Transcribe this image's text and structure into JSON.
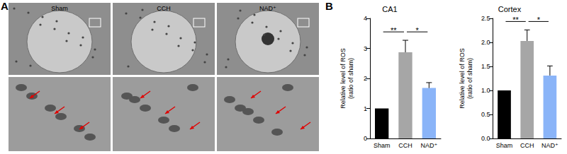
{
  "panel_labels": [
    "A",
    "B"
  ],
  "micrographs": {
    "columns": [
      "Sham",
      "CCH",
      "NAD⁺"
    ]
  },
  "chart_data": [
    {
      "type": "bar",
      "title": "CA1",
      "y_label": "Relative level of ROS\n(ratio of sham)",
      "categories": [
        "Sham",
        "CCH",
        "NAD⁺"
      ],
      "values": [
        1,
        2.87,
        1.68
      ],
      "errors": [
        0,
        0.4,
        0.18
      ],
      "colors": [
        "#000000",
        "#a6a6a6",
        "#8ab4f8"
      ],
      "ylim": [
        0,
        4
      ],
      "yticks": [
        0,
        1,
        2,
        3,
        4
      ],
      "grid": false,
      "annotations": [
        {
          "from": "Sham",
          "to": "CCH",
          "text": "**"
        },
        {
          "from": "CCH",
          "to": "NAD⁺",
          "text": "*"
        }
      ]
    },
    {
      "type": "bar",
      "title": "Cortex",
      "y_label": "Relative level of ROS\n(ratio of sham)",
      "categories": [
        "Sham",
        "CCH",
        "NAD⁺"
      ],
      "values": [
        1,
        2.03,
        1.31
      ],
      "errors": [
        0,
        0.23,
        0.2
      ],
      "colors": [
        "#000000",
        "#a6a6a6",
        "#8ab4f8"
      ],
      "ylim": [
        0,
        2.5
      ],
      "yticks": [
        {
          "value": 0,
          "label": "0.0"
        },
        {
          "value": 0.5,
          "label": "0.5"
        },
        {
          "value": 1,
          "label": "1.0"
        },
        {
          "value": 1.5,
          "label": "1.5"
        },
        {
          "value": 2,
          "label": "2.0"
        },
        {
          "value": 2.5,
          "label": "2.5"
        }
      ],
      "grid": false,
      "annotations": [
        {
          "from": "Sham",
          "to": "CCH",
          "text": "**"
        },
        {
          "from": "CCH",
          "to": "NAD⁺",
          "text": "*"
        }
      ]
    }
  ]
}
